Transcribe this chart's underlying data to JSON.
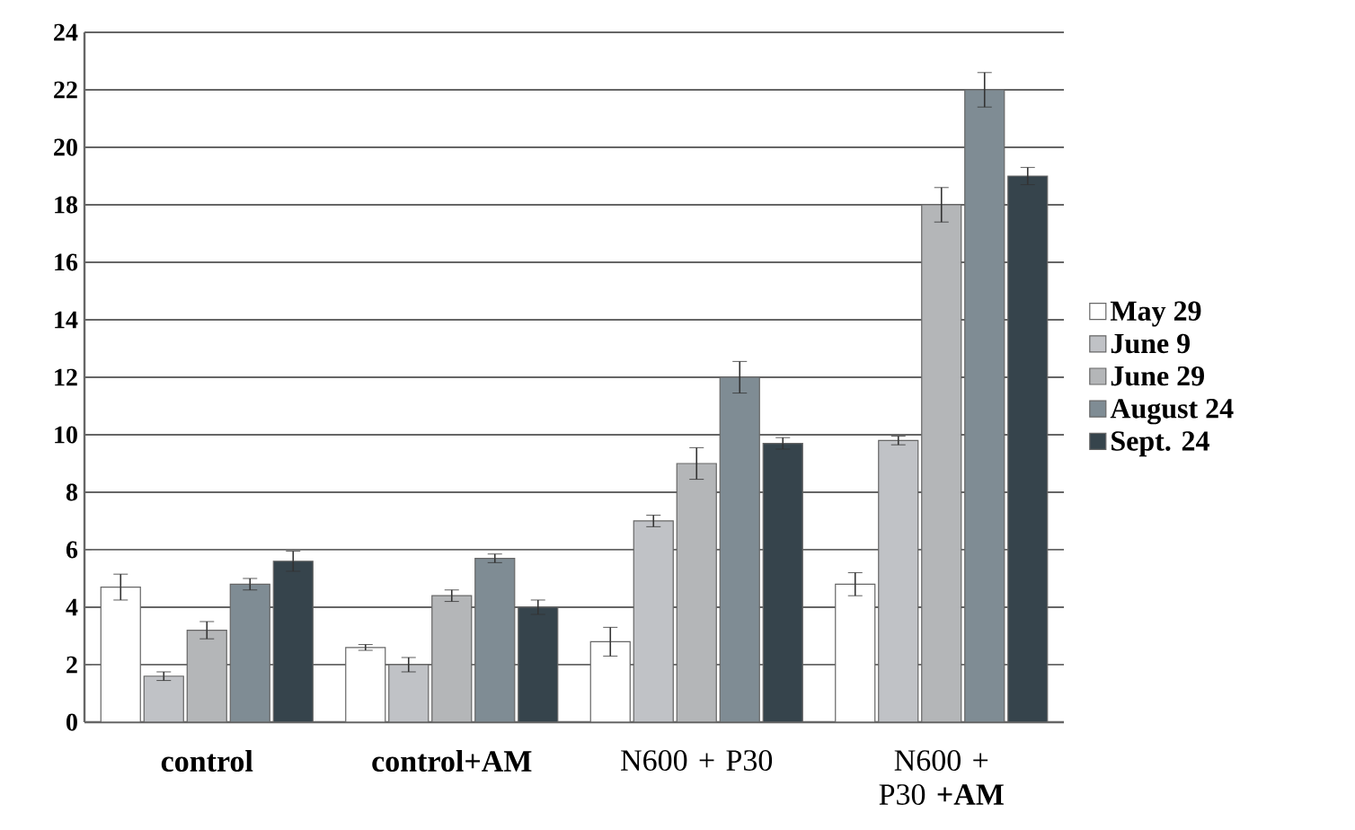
{
  "chart_data": {
    "type": "bar",
    "categories": [
      "**control**",
      "**control+AM**",
      "N600 + P30",
      "N600 + P30 **+AM**"
    ],
    "series": [
      {
        "name": "May 29",
        "color": "#ffffff",
        "values": [
          4.7,
          2.6,
          2.8,
          4.8
        ],
        "errors": [
          0.45,
          0.1,
          0.5,
          0.4
        ]
      },
      {
        "name": "June 9",
        "color": "#c0c2c6",
        "values": [
          1.6,
          2.0,
          7.0,
          9.8
        ],
        "errors": [
          0.15,
          0.25,
          0.2,
          0.15
        ]
      },
      {
        "name": "June 29",
        "color": "#b4b6b8",
        "values": [
          3.2,
          4.4,
          9.0,
          18.0
        ],
        "errors": [
          0.3,
          0.2,
          0.55,
          0.6
        ]
      },
      {
        "name": "August 24",
        "color": "#7f8c94",
        "values": [
          4.8,
          5.7,
          12.0,
          22.0
        ],
        "errors": [
          0.2,
          0.15,
          0.55,
          0.6
        ]
      },
      {
        "name": "Sept. 24",
        "color": "#36444c",
        "values": [
          5.6,
          4.0,
          9.7,
          19.0
        ],
        "errors": [
          0.35,
          0.25,
          0.2,
          0.3
        ]
      }
    ],
    "ylim": [
      0,
      24
    ],
    "yticks": [
      0,
      2,
      4,
      6,
      8,
      10,
      12,
      14,
      16,
      18,
      20,
      22,
      24
    ],
    "grid": "y",
    "legend": "right"
  }
}
